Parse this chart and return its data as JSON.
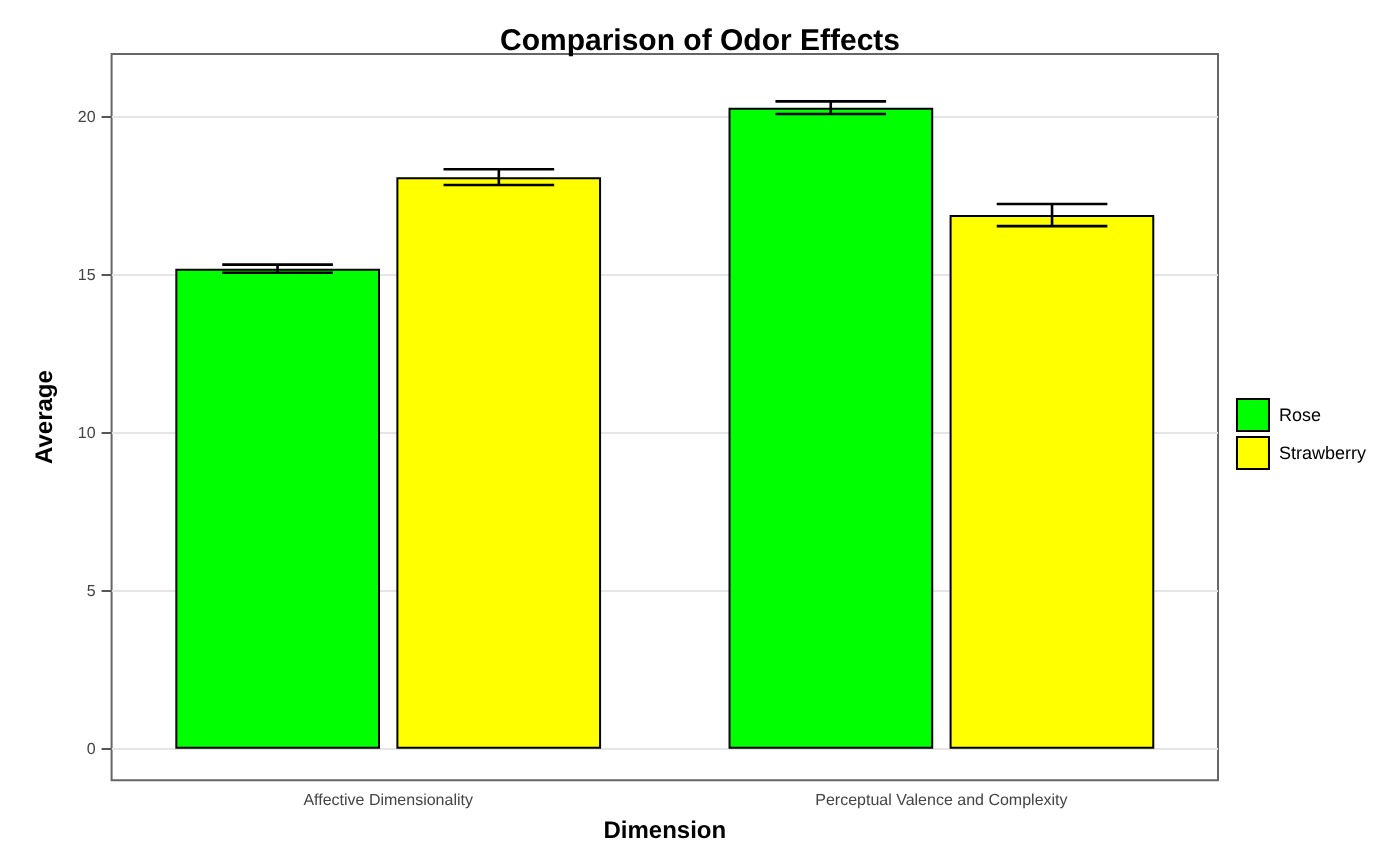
{
  "chart_data": {
    "type": "bar",
    "title": "Comparison of Odor Effects",
    "xlabel": "Dimension",
    "ylabel": "Average",
    "categories": [
      "Affective Dimensionality",
      "Perceptual Valence and Complexity"
    ],
    "series": [
      {
        "name": "Rose",
        "color": "#00ff00",
        "values": [
          15.2,
          20.3
        ],
        "errors": [
          0.13,
          0.2
        ]
      },
      {
        "name": "Strawberry",
        "color": "#ffff00",
        "values": [
          18.1,
          16.9
        ],
        "errors": [
          0.25,
          0.35
        ]
      }
    ],
    "ylim": [
      -1,
      22
    ],
    "yticks": [
      0,
      5,
      10,
      15,
      20
    ],
    "grid": true,
    "legend": "right"
  }
}
